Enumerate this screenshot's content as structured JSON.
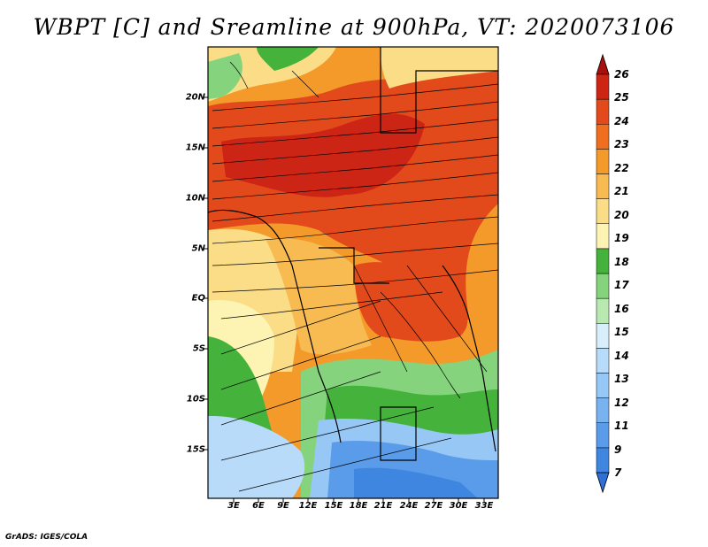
{
  "title": "WBPT [C] and Sreamline at 900hPa, VT: 2020073106",
  "footer": "GrADS: IGES/COLA",
  "map": {
    "lat_labels": [
      "20N",
      "15N",
      "10N",
      "5N",
      "EQ",
      "5S",
      "10S",
      "15S"
    ],
    "lon_labels": [
      "3E",
      "6E",
      "9E",
      "12E",
      "15E",
      "18E",
      "21E",
      "24E",
      "27E",
      "30E",
      "33E"
    ],
    "field": "WBPT",
    "units": "C",
    "level": "900hPa",
    "valid_time": "2020073106"
  },
  "colorbar": {
    "labels": [
      "7",
      "9",
      "11",
      "12",
      "13",
      "14",
      "15",
      "16",
      "17",
      "18",
      "19",
      "20",
      "21",
      "22",
      "23",
      "24",
      "25",
      "26"
    ],
    "colors": [
      "#2f6fd6",
      "#3f86e0",
      "#5a9cea",
      "#78b2ef",
      "#97c7f4",
      "#b7dbf8",
      "#d8effb",
      "#b9e8b1",
      "#86d37d",
      "#45b23c",
      "#fdf3b2",
      "#fbdd87",
      "#f7bb52",
      "#f39a2b",
      "#ef6e1f",
      "#e24a1b",
      "#cc2515",
      "#a8100d"
    ]
  }
}
